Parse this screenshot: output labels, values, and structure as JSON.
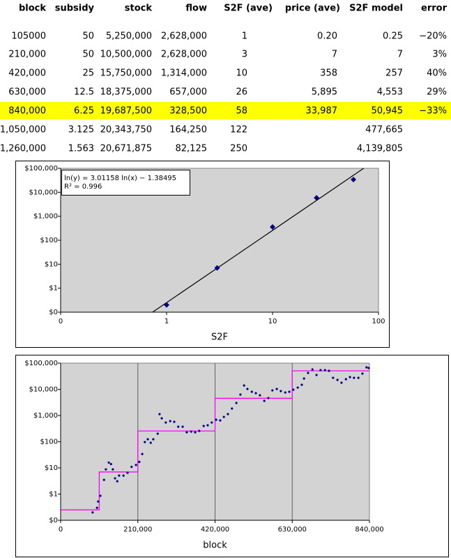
{
  "table": {
    "header": [
      "block",
      "subsidy",
      "stock",
      "flow",
      "S2F (ave)",
      "price (ave)",
      "S2F model",
      "error"
    ],
    "rows": [
      [
        "105000",
        "50",
        "5,250,000",
        "2,628,000",
        "1",
        "0.20",
        "0.25",
        "−20%"
      ],
      [
        "210,000",
        "50",
        "10,500,000",
        "2,628,000",
        "3",
        "7",
        "7",
        "3%"
      ],
      [
        "420,000",
        "25",
        "15,750,000",
        "1,314,000",
        "10",
        "358",
        "257",
        "40%"
      ],
      [
        "630,000",
        "12.5",
        "18,375,000",
        "657,000",
        "26",
        "5,895",
        "4,553",
        "29%"
      ],
      [
        "840,000",
        "6.25",
        "19,687,500",
        "328,500",
        "58",
        "33,987",
        "50,945",
        "−33%"
      ],
      [
        "1,050,000",
        "3.125",
        "20,343,750",
        "164,250",
        "122",
        null,
        "477,665",
        null
      ],
      [
        "1,260,000",
        "1.563",
        "20,671,875",
        "82,125",
        "250",
        null,
        "4,139,805",
        null
      ]
    ]
  },
  "chart_data": [
    {
      "type": "scatter",
      "x_label": "S2F",
      "xscale": "log",
      "yscale": "log",
      "background": "#d3d3d3",
      "xlim": [
        0.1,
        100
      ],
      "xticks": [
        {
          "value": 0.1,
          "label": "0"
        },
        1,
        10,
        100
      ],
      "ylim": [
        0.1,
        100000
      ],
      "yticks": [
        {
          "value": 0.1,
          "label": "$0"
        },
        {
          "value": 1,
          "label": "$1"
        },
        {
          "value": 10,
          "label": "$10"
        },
        {
          "value": 100,
          "label": "$100"
        },
        {
          "value": 1000,
          "label": "$1,000"
        },
        {
          "value": 10000,
          "label": "$10,000"
        },
        {
          "value": 100000,
          "label": "$100,000"
        }
      ],
      "xgrid": false,
      "series": [
        {
          "color": "#000080",
          "marker": "diamond",
          "x": [
            1,
            3,
            10,
            26,
            58
          ],
          "values": [
            0.2,
            7,
            358,
            5895,
            33987
          ]
        }
      ],
      "trendline": {
        "slope": 3.01158,
        "intercept": -1.38495,
        "color": "#000000"
      },
      "annotation": [
        "ln(y) = 3.01158 ln(x) − 1.38495",
        "R² = 0.996"
      ]
    },
    {
      "type": "scatter",
      "x_label": "block",
      "xscale": "linear",
      "yscale": "log",
      "background": "#d3d3d3",
      "xlim": [
        0,
        840000
      ],
      "xticks": [
        0,
        {
          "value": 210000,
          "label": "210,000"
        },
        {
          "value": 420000,
          "label": "420,000"
        },
        {
          "value": 630000,
          "label": "630,000"
        },
        {
          "value": 840000,
          "label": "840,000"
        }
      ],
      "ylim": [
        0.1,
        100000
      ],
      "yticks": [
        {
          "value": 0.1,
          "label": "$0"
        },
        {
          "value": 1,
          "label": "$1"
        },
        {
          "value": 10,
          "label": "$10"
        },
        {
          "value": 100,
          "label": "$100"
        },
        {
          "value": 1000,
          "label": "$1,000"
        },
        {
          "value": 10000,
          "label": "$10,000"
        },
        {
          "value": 100000,
          "label": "$100,000"
        }
      ],
      "xgrid": true,
      "series": [
        {
          "type": "line",
          "color": "#ff00ff",
          "x": [
            0,
            105000,
            105000,
            210000,
            210000,
            420000,
            420000,
            630000,
            630000,
            840000
          ],
          "values": [
            0.25,
            0.25,
            7,
            7,
            257,
            257,
            4553,
            4553,
            50945,
            50945
          ]
        },
        {
          "color": "#000080",
          "marker": "dot",
          "x": [
            87000,
            99000,
            102000,
            108000,
            118000,
            123000,
            131000,
            137000,
            142000,
            148000,
            154000,
            159000,
            171000,
            182000,
            193000,
            205000,
            214000,
            222000,
            229000,
            237000,
            245000,
            252000,
            264000,
            269000,
            275000,
            286000,
            298000,
            309000,
            320000,
            332000,
            343000,
            355000,
            366000,
            377000,
            389000,
            400000,
            411000,
            423000,
            434000,
            444000,
            455000,
            466000,
            478000,
            489000,
            499000,
            508000,
            520000,
            531000,
            542000,
            554000,
            565000,
            576000,
            588000,
            599000,
            611000,
            622000,
            633000,
            645000,
            656000,
            662000,
            673000,
            685000,
            696000,
            707000,
            719000,
            730000,
            741000,
            753000,
            764000,
            776000,
            787000,
            798000,
            810000,
            821000,
            832000,
            838000
          ],
          "values": [
            0.2,
            0.3,
            0.52,
            0.86,
            3.5,
            8.8,
            16,
            14,
            8.8,
            4,
            3.1,
            5.1,
            5.1,
            6.5,
            11,
            13,
            17,
            34,
            97,
            124,
            91,
            124,
            203,
            1130,
            782,
            541,
            612,
            575,
            375,
            375,
            229,
            244,
            229,
            259,
            398,
            424,
            541,
            692,
            650,
            885,
            1130,
            1848,
            3020,
            6310,
            14000,
            10300,
            8070,
            7130,
            5930,
            3630,
            4640,
            9120,
            10300,
            8580,
            7590,
            8070,
            9700,
            11700,
            14900,
            25900,
            42400,
            57500,
            35200,
            54100,
            54100,
            50900,
            27500,
            22900,
            17900,
            24400,
            29300,
            27500,
            27500,
            39800,
            69200,
            65000
          ]
        }
      ]
    }
  ]
}
